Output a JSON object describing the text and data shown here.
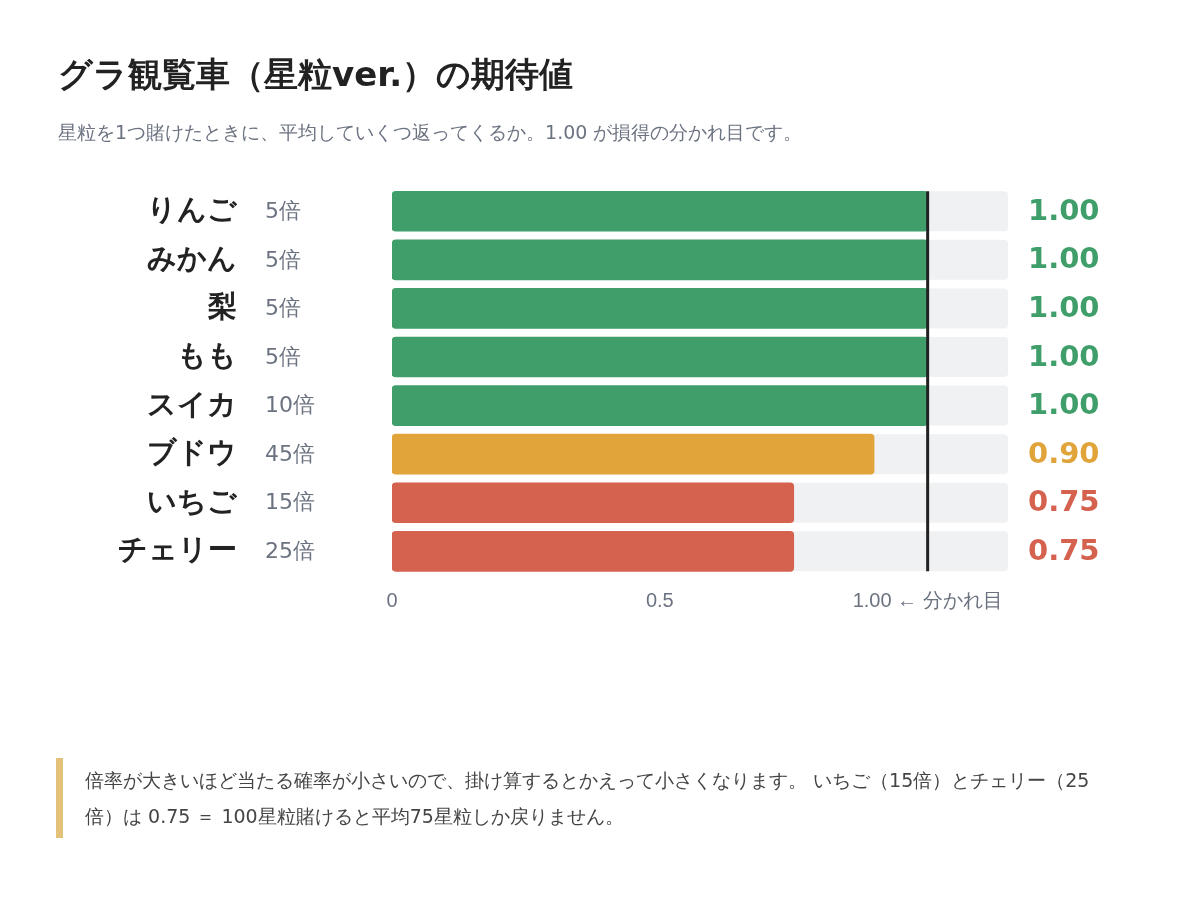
{
  "chart_data": {
    "type": "bar",
    "orientation": "horizontal",
    "title": "グラ観覧車（星粒ver.）の期待値",
    "subtitle": "星粒を1つ賭けたときに、平均していくつ返ってくるか。1.00 が損得の分かれ目です。",
    "categories": [
      "りんご",
      "みかん",
      "梨",
      "もも",
      "スイカ",
      "ブドウ",
      "いちご",
      "チェリー"
    ],
    "values": [
      1,
      1,
      1,
      1,
      1,
      0.9,
      0.75,
      0.75
    ],
    "colors": [
      "#3f9e6a",
      "#3f9e6a",
      "#3f9e6a",
      "#3f9e6a",
      "#3f9e6a",
      "#e0a43a",
      "#d5614f",
      "#d5614f"
    ],
    "value_labels": [
      "1.00",
      "1.00",
      "1.00",
      "1.00",
      "1.00",
      "0.90",
      "0.75",
      "0.75"
    ],
    "xlim": [
      0,
      1.15
    ],
    "xticks": [
      0,
      0.5,
      {
        "value": 1,
        "label": "1.00 ← 分かれ目"
      }
    ],
    "ref_lines": [
      {
        "axis": "x",
        "value": 1,
        "color": "#222222"
      }
    ],
    "annotations": [
      "5倍",
      "5倍",
      "5倍",
      "5倍",
      "10倍",
      "45倍",
      "15倍",
      "25倍",
      "倍率が大きいほど当たる確率が小さいので、掛け算するとかえって小さくなります。 いちご（15倍）とチェリー（25倍）は 0.75 ＝ 100星粒賭けると平均75星粒しか戻りません。"
    ],
    "grid": false,
    "legend": false
  }
}
